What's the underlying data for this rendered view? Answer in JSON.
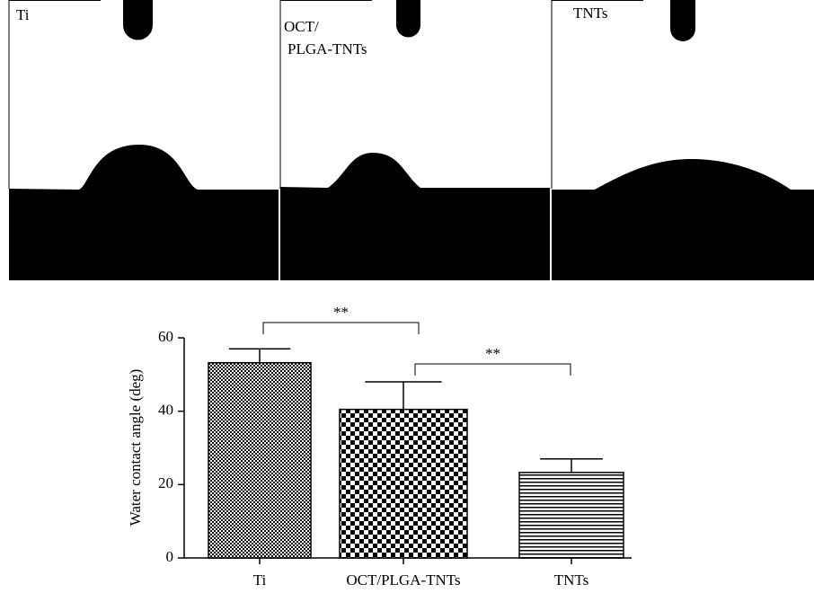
{
  "panels": [
    {
      "label": [
        "Ti"
      ]
    },
    {
      "label": [
        "OCT/",
        "PLGA-TNTs"
      ]
    },
    {
      "label": [
        "TNTs"
      ]
    }
  ],
  "chart_data": {
    "type": "bar",
    "y_label": "Water contact angle (deg)",
    "categories": [
      "Ti",
      "OCT/PLGA-TNTs",
      "TNTs"
    ],
    "values": [
      53.2,
      40.5,
      23.3
    ],
    "errors": [
      3.8,
      7.5,
      3.7
    ],
    "ylim": [
      0,
      60
    ],
    "yticks": [
      0,
      20,
      40,
      60
    ],
    "annotations": [
      {
        "text": "**",
        "from": 0,
        "to": 1
      },
      {
        "text": "**",
        "from": 1,
        "to": 2
      }
    ]
  }
}
